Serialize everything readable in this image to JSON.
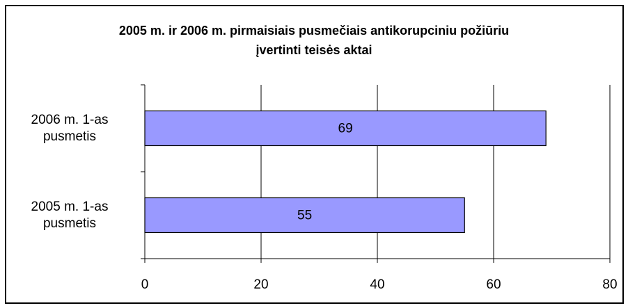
{
  "chart_data": {
    "type": "bar",
    "orientation": "horizontal",
    "title": "2005 m. ir 2006 m. pirmaisiais pusmečiais antikorupciniu požiūriu įvertinti teisės aktai",
    "categories": [
      "2005 m. 1-as pusmetis",
      "2006 m. 1-as pusmetis"
    ],
    "values": [
      55,
      69
    ],
    "color": "#9999ff",
    "xlim": [
      0,
      80
    ],
    "xticks": [
      0,
      20,
      40,
      60,
      80
    ],
    "grid": true
  }
}
